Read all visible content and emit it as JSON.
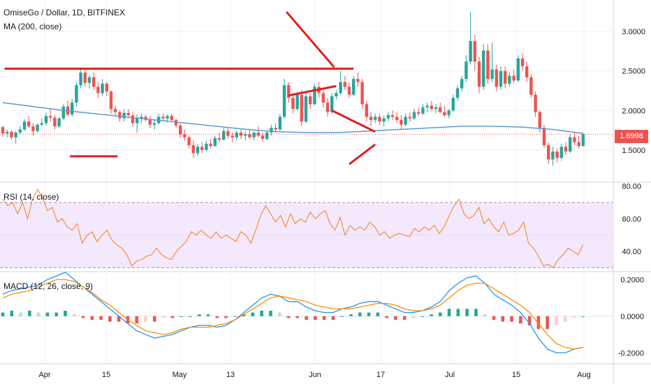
{
  "header": {
    "symbol_line": "OmiseGo / Dollar, 1D, BITFINEX",
    "ma_label": "MA (200, close)",
    "rsi_label": "RSI (14, close)",
    "macd_label": "MACD (12, 26, close, 9)"
  },
  "last_price": "1.6998",
  "colors": {
    "up": "#26a69a",
    "down": "#ef5350",
    "ma": "#5b9bd5",
    "rsi": "#f57f17",
    "drawing": "#e0201c",
    "macd": "#2196f3",
    "signal": "#ff8c00"
  },
  "chart_data": [
    {
      "type": "candlestick",
      "x_tick_labels": [
        "Apr",
        "15",
        "May",
        "13",
        "Jun",
        "17",
        "Jul",
        "15",
        "Aug"
      ],
      "y_tick_labels": [
        "3.0000",
        "2.5000",
        "2.0000",
        "1.5000"
      ],
      "ylim": [
        1.1,
        3.4
      ],
      "candles": [
        [
          1.79,
          1.81,
          1.67,
          1.71
        ],
        [
          1.71,
          1.76,
          1.66,
          1.73
        ],
        [
          1.73,
          1.75,
          1.63,
          1.66
        ],
        [
          1.66,
          1.74,
          1.58,
          1.72
        ],
        [
          1.72,
          1.8,
          1.7,
          1.76
        ],
        [
          1.76,
          1.89,
          1.74,
          1.86
        ],
        [
          1.86,
          1.93,
          1.78,
          1.8
        ],
        [
          1.8,
          1.84,
          1.68,
          1.74
        ],
        [
          1.74,
          1.84,
          1.72,
          1.82
        ],
        [
          1.82,
          1.9,
          1.8,
          1.84
        ],
        [
          1.84,
          1.97,
          1.81,
          1.93
        ],
        [
          1.93,
          2.02,
          1.86,
          1.91
        ],
        [
          1.91,
          1.94,
          1.76,
          1.8
        ],
        [
          1.8,
          1.92,
          1.78,
          1.9
        ],
        [
          1.9,
          2.08,
          1.88,
          2.05
        ],
        [
          2.05,
          2.12,
          1.92,
          1.95
        ],
        [
          1.95,
          2.15,
          1.92,
          2.1
        ],
        [
          2.1,
          2.36,
          2.05,
          2.32
        ],
        [
          2.32,
          2.52,
          2.28,
          2.48
        ],
        [
          2.48,
          2.52,
          2.3,
          2.35
        ],
        [
          2.35,
          2.45,
          2.28,
          2.42
        ],
        [
          2.42,
          2.48,
          2.26,
          2.3
        ],
        [
          2.3,
          2.36,
          2.16,
          2.22
        ],
        [
          2.22,
          2.4,
          2.18,
          2.34
        ],
        [
          2.34,
          2.36,
          2.18,
          2.24
        ],
        [
          2.24,
          2.26,
          1.96,
          2.02
        ],
        [
          2.02,
          2.06,
          1.92,
          1.98
        ],
        [
          1.98,
          2.0,
          1.86,
          1.9
        ],
        [
          1.9,
          2.02,
          1.86,
          1.97
        ],
        [
          1.97,
          2.02,
          1.9,
          1.94
        ],
        [
          1.94,
          1.98,
          1.8,
          1.84
        ],
        [
          1.84,
          1.95,
          1.72,
          1.9
        ],
        [
          1.9,
          1.96,
          1.84,
          1.92
        ],
        [
          1.92,
          1.95,
          1.86,
          1.88
        ],
        [
          1.88,
          1.93,
          1.78,
          1.82
        ],
        [
          1.82,
          1.88,
          1.76,
          1.84
        ],
        [
          1.84,
          1.96,
          1.82,
          1.92
        ],
        [
          1.92,
          1.96,
          1.87,
          1.9
        ],
        [
          1.9,
          1.95,
          1.85,
          1.93
        ],
        [
          1.93,
          1.96,
          1.86,
          1.88
        ],
        [
          1.88,
          1.9,
          1.78,
          1.81
        ],
        [
          1.81,
          1.84,
          1.66,
          1.7
        ],
        [
          1.7,
          1.76,
          1.62,
          1.66
        ],
        [
          1.66,
          1.68,
          1.52,
          1.56
        ],
        [
          1.56,
          1.62,
          1.4,
          1.46
        ],
        [
          1.46,
          1.58,
          1.42,
          1.54
        ],
        [
          1.54,
          1.6,
          1.46,
          1.5
        ],
        [
          1.5,
          1.62,
          1.48,
          1.58
        ],
        [
          1.58,
          1.64,
          1.52,
          1.55
        ],
        [
          1.55,
          1.68,
          1.54,
          1.65
        ],
        [
          1.65,
          1.72,
          1.6,
          1.63
        ],
        [
          1.63,
          1.78,
          1.62,
          1.74
        ],
        [
          1.74,
          1.78,
          1.64,
          1.68
        ],
        [
          1.68,
          1.72,
          1.6,
          1.66
        ],
        [
          1.66,
          1.74,
          1.62,
          1.72
        ],
        [
          1.72,
          1.76,
          1.64,
          1.68
        ],
        [
          1.68,
          1.74,
          1.62,
          1.7
        ],
        [
          1.7,
          1.76,
          1.64,
          1.66
        ],
        [
          1.66,
          1.74,
          1.62,
          1.72
        ],
        [
          1.72,
          1.8,
          1.66,
          1.68
        ],
        [
          1.68,
          1.72,
          1.6,
          1.64
        ],
        [
          1.64,
          1.74,
          1.62,
          1.72
        ],
        [
          1.72,
          1.82,
          1.68,
          1.78
        ],
        [
          1.78,
          1.84,
          1.72,
          1.76
        ],
        [
          1.76,
          1.96,
          1.74,
          1.92
        ],
        [
          1.92,
          2.4,
          1.9,
          2.32
        ],
        [
          2.32,
          2.36,
          2.1,
          2.16
        ],
        [
          2.16,
          2.22,
          1.96,
          2.02
        ],
        [
          2.02,
          2.24,
          2.0,
          2.2
        ],
        [
          2.2,
          2.26,
          1.8,
          1.86
        ],
        [
          1.86,
          2.22,
          1.84,
          2.18
        ],
        [
          2.18,
          2.22,
          2.02,
          2.08
        ],
        [
          2.08,
          2.34,
          2.06,
          2.3
        ],
        [
          2.3,
          2.36,
          2.16,
          2.22
        ],
        [
          2.22,
          2.26,
          2.04,
          2.1
        ],
        [
          2.1,
          2.16,
          1.92,
          1.98
        ],
        [
          1.98,
          2.22,
          1.96,
          2.18
        ],
        [
          2.18,
          2.26,
          2.14,
          2.22
        ],
        [
          2.22,
          2.5,
          2.2,
          2.36
        ],
        [
          2.36,
          2.44,
          2.26,
          2.3
        ],
        [
          2.3,
          2.36,
          2.16,
          2.2
        ],
        [
          2.2,
          2.44,
          2.18,
          2.4
        ],
        [
          2.4,
          2.48,
          2.3,
          2.36
        ],
        [
          2.36,
          2.4,
          2.02,
          2.08
        ],
        [
          2.08,
          2.12,
          1.86,
          1.92
        ],
        [
          1.92,
          1.98,
          1.8,
          1.88
        ],
        [
          1.88,
          1.96,
          1.84,
          1.92
        ],
        [
          1.92,
          1.96,
          1.82,
          1.86
        ],
        [
          1.86,
          1.94,
          1.8,
          1.9
        ],
        [
          1.9,
          1.98,
          1.86,
          1.94
        ],
        [
          1.94,
          2.0,
          1.88,
          1.92
        ],
        [
          1.92,
          1.98,
          1.84,
          1.88
        ],
        [
          1.88,
          1.94,
          1.76,
          1.82
        ],
        [
          1.82,
          1.96,
          1.8,
          1.92
        ],
        [
          1.92,
          1.98,
          1.86,
          1.9
        ],
        [
          1.9,
          2.02,
          1.88,
          1.98
        ],
        [
          1.98,
          2.04,
          1.92,
          1.96
        ],
        [
          1.96,
          2.08,
          1.94,
          2.04
        ],
        [
          2.04,
          2.1,
          1.98,
          2.06
        ],
        [
          2.06,
          2.12,
          2.0,
          2.02
        ],
        [
          2.02,
          2.08,
          1.96,
          2.04
        ],
        [
          2.04,
          2.1,
          1.96,
          1.98
        ],
        [
          1.98,
          2.06,
          1.92,
          1.94
        ],
        [
          1.94,
          2.02,
          1.9,
          2.0
        ],
        [
          2.0,
          2.2,
          1.98,
          2.16
        ],
        [
          2.16,
          2.32,
          2.12,
          2.28
        ],
        [
          2.28,
          2.44,
          2.24,
          2.4
        ],
        [
          2.4,
          2.7,
          2.36,
          2.62
        ],
        [
          2.62,
          3.25,
          2.58,
          2.88
        ],
        [
          2.88,
          2.96,
          2.5,
          2.62
        ],
        [
          2.62,
          2.68,
          2.22,
          2.3
        ],
        [
          2.3,
          2.84,
          2.26,
          2.76
        ],
        [
          2.76,
          2.84,
          2.34,
          2.4
        ],
        [
          2.4,
          2.86,
          2.36,
          2.52
        ],
        [
          2.52,
          2.58,
          2.24,
          2.3
        ],
        [
          2.3,
          2.56,
          2.26,
          2.5
        ],
        [
          2.5,
          2.56,
          2.28,
          2.34
        ],
        [
          2.34,
          2.48,
          2.3,
          2.44
        ],
        [
          2.44,
          2.52,
          2.34,
          2.38
        ],
        [
          2.38,
          2.7,
          2.36,
          2.66
        ],
        [
          2.66,
          2.72,
          2.5,
          2.56
        ],
        [
          2.56,
          2.62,
          2.36,
          2.42
        ],
        [
          2.42,
          2.46,
          2.16,
          2.2
        ],
        [
          2.2,
          2.24,
          1.92,
          1.98
        ],
        [
          1.98,
          2.0,
          1.72,
          1.78
        ],
        [
          1.78,
          1.82,
          1.52,
          1.56
        ],
        [
          1.56,
          1.6,
          1.32,
          1.38
        ],
        [
          1.38,
          1.54,
          1.3,
          1.48
        ],
        [
          1.48,
          1.52,
          1.34,
          1.4
        ],
        [
          1.4,
          1.58,
          1.36,
          1.54
        ],
        [
          1.54,
          1.6,
          1.44,
          1.48
        ],
        [
          1.48,
          1.7,
          1.46,
          1.66
        ],
        [
          1.66,
          1.72,
          1.56,
          1.6
        ],
        [
          1.6,
          1.68,
          1.52,
          1.55
        ],
        [
          1.55,
          1.72,
          1.54,
          1.7
        ]
      ],
      "ma200": [
        2.1,
        2.05,
        2.0,
        1.96,
        1.92,
        1.88,
        1.84,
        1.8,
        1.76,
        1.73,
        1.72,
        1.72,
        1.74,
        1.76,
        1.78,
        1.8,
        1.8,
        1.79,
        1.76,
        1.71
      ],
      "annotations": {
        "resistance": [
          [
            0.4,
            2.53
          ],
          [
            81,
            2.53
          ]
        ],
        "support": [
          [
            15.5,
            1.42
          ],
          [
            26.5,
            1.42
          ]
        ],
        "triangle1_upper": [
          [
            65.5,
            3.25
          ],
          [
            76.5,
            2.55
          ]
        ],
        "triangle1_lower": [
          [
            66,
            2.19
          ],
          [
            77,
            2.31
          ]
        ],
        "triangle2_upper": [
          [
            76,
            2.0
          ],
          [
            86,
            1.73
          ]
        ],
        "triangle2_lower": [
          [
            80,
            1.32
          ],
          [
            86,
            1.57
          ]
        ],
        "last_price_line": 1.6998
      }
    },
    {
      "type": "line",
      "name": "RSI",
      "y_tick_labels": [
        "80.00",
        "60.00",
        "40.00"
      ],
      "ylim": [
        28,
        82
      ],
      "band": [
        30,
        70
      ],
      "values": [
        72,
        68,
        70,
        63,
        70,
        60,
        72,
        78,
        73,
        65,
        67,
        58,
        60,
        55,
        53,
        57,
        45,
        50,
        52,
        46,
        50,
        53,
        47,
        44,
        42,
        38,
        31,
        34,
        35,
        37,
        38,
        42,
        38,
        36,
        35,
        40,
        43,
        46,
        52,
        50,
        53,
        50,
        48,
        52,
        48,
        50,
        48,
        46,
        52,
        50,
        45,
        53,
        62,
        68,
        63,
        58,
        62,
        55,
        63,
        57,
        60,
        58,
        64,
        60,
        63,
        65,
        57,
        53,
        61,
        50,
        56,
        53,
        55,
        53,
        58,
        55,
        50,
        52,
        48,
        50,
        51,
        50,
        49,
        54,
        52,
        55,
        53,
        56,
        51,
        55,
        62,
        68,
        72,
        63,
        60,
        62,
        67,
        57,
        60,
        55,
        52,
        58,
        50,
        51,
        53,
        58,
        45,
        42,
        37,
        31,
        32,
        30,
        35,
        38,
        42,
        40,
        38,
        44
      ]
    },
    {
      "type": "bar",
      "name": "MACD",
      "y_tick_labels": [
        "0.2000",
        "0.0000",
        "-0.2000"
      ],
      "ylim": [
        -0.26,
        0.24
      ],
      "macd": [
        0.12,
        0.14,
        0.15,
        0.16,
        0.17,
        0.2,
        0.22,
        0.24,
        0.2,
        0.16,
        0.12,
        0.08,
        0.04,
        0.0,
        -0.04,
        -0.08,
        -0.1,
        -0.12,
        -0.11,
        -0.1,
        -0.08,
        -0.06,
        -0.05,
        -0.05,
        -0.06,
        -0.05,
        -0.02,
        0.02,
        0.06,
        0.1,
        0.12,
        0.11,
        0.08,
        0.08,
        0.05,
        0.03,
        0.02,
        0.02,
        0.04,
        0.05,
        0.07,
        0.08,
        0.08,
        0.06,
        0.04,
        0.02,
        0.02,
        0.03,
        0.05,
        0.08,
        0.14,
        0.18,
        0.21,
        0.22,
        0.18,
        0.12,
        0.09,
        0.06,
        0.02,
        -0.04,
        -0.12,
        -0.18,
        -0.2,
        -0.2,
        -0.18,
        -0.17
      ],
      "signal": [
        0.1,
        0.12,
        0.13,
        0.14,
        0.16,
        0.18,
        0.2,
        0.2,
        0.19,
        0.16,
        0.13,
        0.09,
        0.06,
        0.02,
        -0.02,
        -0.05,
        -0.08,
        -0.09,
        -0.1,
        -0.09,
        -0.07,
        -0.06,
        -0.06,
        -0.06,
        -0.05,
        -0.04,
        -0.02,
        0.01,
        0.04,
        0.07,
        0.1,
        0.11,
        0.1,
        0.09,
        0.08,
        0.06,
        0.05,
        0.04,
        0.04,
        0.04,
        0.05,
        0.06,
        0.07,
        0.07,
        0.06,
        0.04,
        0.03,
        0.03,
        0.04,
        0.06,
        0.1,
        0.14,
        0.17,
        0.18,
        0.18,
        0.15,
        0.12,
        0.09,
        0.06,
        0.02,
        -0.04,
        -0.1,
        -0.15,
        -0.17,
        -0.18,
        -0.17
      ],
      "histogram": [
        0.02,
        0.03,
        0.02,
        0.03,
        0.02,
        0.02,
        0.02,
        0.03,
        0.01,
        -0.01,
        -0.02,
        -0.02,
        -0.03,
        -0.03,
        -0.04,
        -0.04,
        -0.03,
        -0.03,
        -0.01,
        -0.01,
        0.0,
        0.0,
        0.01,
        0.01,
        -0.01,
        -0.01,
        0.0,
        0.01,
        0.02,
        0.03,
        0.03,
        0.02,
        -0.01,
        -0.01,
        -0.02,
        -0.02,
        -0.02,
        -0.02,
        0.0,
        0.01,
        0.02,
        0.02,
        0.02,
        -0.01,
        -0.02,
        -0.02,
        -0.01,
        0.0,
        0.01,
        0.02,
        0.04,
        0.04,
        0.04,
        0.04,
        0.01,
        -0.02,
        -0.03,
        -0.03,
        -0.04,
        -0.05,
        -0.07,
        -0.07,
        -0.05,
        -0.03,
        -0.01,
        0.0
      ]
    }
  ]
}
